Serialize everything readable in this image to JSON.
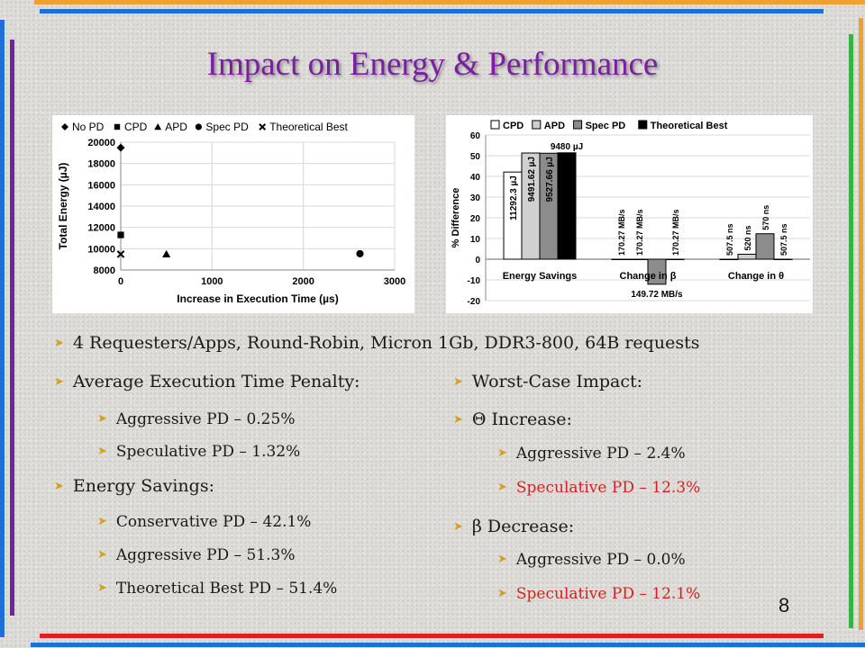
{
  "slide": {
    "title": "Impact on Energy & Performance",
    "page_number": "8"
  },
  "chart_data": [
    {
      "type": "scatter",
      "title": "",
      "xlabel": "Increase in Execution Time (µs)",
      "ylabel": "Total Energy (µJ)",
      "xlim": [
        0,
        3000
      ],
      "ylim": [
        8000,
        20000
      ],
      "xticks": [
        "0",
        "1000",
        "2000",
        "3000"
      ],
      "yticks": [
        "8000",
        "10000",
        "12000",
        "14000",
        "16000",
        "18000",
        "20000"
      ],
      "grid": true,
      "legend": "top",
      "series": [
        {
          "name": "No PD",
          "marker": "diamond",
          "points": [
            [
              0,
              19480
            ]
          ]
        },
        {
          "name": "CPD",
          "marker": "square",
          "points": [
            [
              0,
              11292
            ]
          ]
        },
        {
          "name": "APD",
          "marker": "triangle",
          "points": [
            [
              500,
              9492
            ]
          ]
        },
        {
          "name": "Spec PD",
          "marker": "circle",
          "points": [
            [
              2620,
              9528
            ]
          ]
        },
        {
          "name": "Theoretical Best",
          "marker": "x",
          "points": [
            [
              0,
              9480
            ]
          ]
        }
      ]
    },
    {
      "type": "bar",
      "title": "",
      "xlabel": "",
      "ylabel": "% Difference",
      "ylim": [
        -20,
        60
      ],
      "yticks": [
        "-20",
        "-10",
        "0",
        "10",
        "20",
        "30",
        "40",
        "50",
        "60"
      ],
      "grid": true,
      "legend": "top",
      "categories": [
        "Energy Savings",
        "Change in β",
        "Change in θ"
      ],
      "series": [
        {
          "name": "CPD",
          "color": "#ffffff",
          "values": [
            42.1,
            0,
            0
          ],
          "labels": [
            "11292.3 µJ",
            "170.27 MB/s",
            "507.5 ns"
          ]
        },
        {
          "name": "APD",
          "color": "#d0d0d0",
          "values": [
            51.3,
            0,
            2.4
          ],
          "labels": [
            "9491.62 µJ",
            "170.27 MB/s",
            "520 ns"
          ]
        },
        {
          "name": "Spec PD",
          "color": "#8c8c8c",
          "values": [
            51.2,
            -12.1,
            12.3
          ],
          "labels": [
            "9527.66 µJ",
            "149.72 MB/s",
            "570 ns"
          ]
        },
        {
          "name": "Theoretical Best",
          "color": "#000000",
          "values": [
            51.4,
            0,
            0
          ],
          "labels": [
            "9480 µJ",
            "170.27 MB/s",
            "507.5 ns"
          ]
        }
      ]
    }
  ],
  "bullets": {
    "top": "4 Requesters/Apps, Round-Robin, Micron 1Gb, DDR3-800, 64B requests",
    "left": {
      "penalty": "Average Execution Time Penalty:",
      "penalty_items": [
        "Aggressive PD – 0.25%",
        "Speculative PD – 1.32%"
      ],
      "energy": "Energy Savings:",
      "energy_items": [
        "Conservative PD – 42.1%",
        "Aggressive PD – 51.3%",
        "Theoretical Best PD – 51.4%"
      ]
    },
    "right": {
      "worst": "Worst-Case Impact:",
      "theta": "Θ Increase:",
      "theta_items": [
        "Aggressive PD – 2.4%",
        "Speculative PD – 12.3%"
      ],
      "beta": "β Decrease:",
      "beta_items": [
        "Aggressive PD – 0.0%",
        "Speculative PD – 12.1%"
      ]
    }
  },
  "colors": {
    "title": "#7b1fa2",
    "bullet_arrow": "#d4a017",
    "highlight_red": "#d62020",
    "bar_top_orange": "#f0a030",
    "bar_blue": "#1e6fd9",
    "bar_red": "#e02020",
    "bar_green": "#3cb043",
    "bar_purple": "#7b1fa2"
  }
}
